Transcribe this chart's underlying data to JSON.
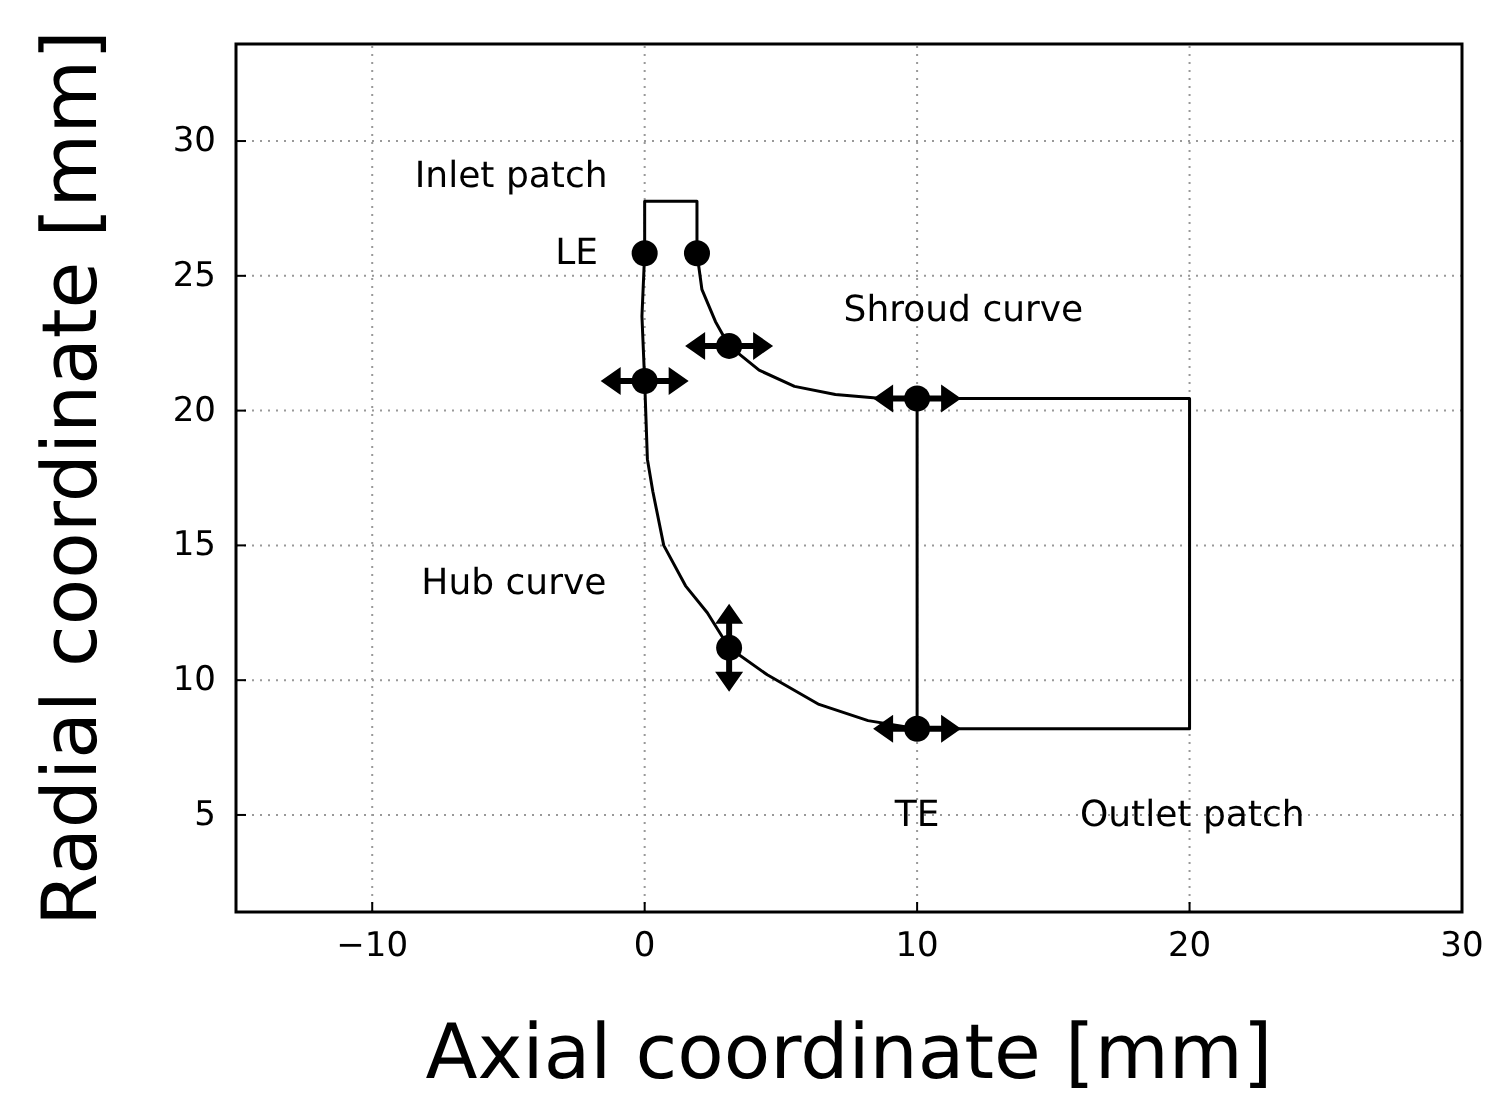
{
  "chart_data": {
    "type": "line",
    "xlabel": "Axial coordinate [mm]",
    "ylabel": "Radial coordinate [mm]",
    "xlim": [
      -15,
      30
    ],
    "ylim": [
      1.4,
      33.6
    ],
    "xticks": [
      {
        "value": -10,
        "label": "−10"
      },
      0,
      10,
      20,
      30
    ],
    "yticks": [
      5,
      10,
      15,
      20,
      25,
      30
    ],
    "grid": true,
    "line_style": "solid",
    "series": [
      {
        "color": "#000000",
        "x": [
          0,
          -0.1,
          0,
          0.1,
          0.3,
          0.7,
          1.5,
          2.3,
          3.1,
          4.5,
          6.4,
          8.2,
          10
        ],
        "values": [
          25.84,
          23.5,
          21.1,
          18.2,
          17,
          15,
          13.5,
          12.5,
          11.2,
          10.2,
          9.1,
          8.5,
          8.2
        ]
      },
      {
        "color": "#000000",
        "x": [
          1.92,
          2.1,
          2.6,
          3.1,
          4.2,
          5.5,
          7,
          8.5,
          10
        ],
        "values": [
          25.84,
          24.5,
          23.3,
          22.4,
          21.5,
          20.9,
          20.6,
          20.47,
          20.45
        ]
      },
      {
        "color": "#000000",
        "x": [
          0,
          0,
          1.92,
          1.92
        ],
        "values": [
          25.84,
          27.77,
          27.77,
          25.84
        ]
      },
      {
        "color": "#000000",
        "x": [
          10,
          20,
          20,
          10
        ],
        "values": [
          20.45,
          20.45,
          8.2,
          8.2
        ]
      },
      {
        "color": "#000000",
        "x": [
          10,
          10
        ],
        "values": [
          8.2,
          20.45
        ]
      },
      {
        "type": "scatter",
        "marker": "circle",
        "color": "#000000",
        "x": [
          0,
          1.92
        ],
        "values": [
          25.84,
          25.84
        ]
      },
      {
        "type": "scatter",
        "marker": "circle",
        "color": "#000000",
        "x": [
          0,
          3.1,
          10,
          10
        ],
        "values": [
          21.1,
          22.4,
          20.45,
          8.2
        ]
      },
      {
        "type": "scatter",
        "marker": "circle",
        "color": "#000000",
        "x": [
          3.1
        ],
        "values": [
          11.2
        ]
      }
    ],
    "annotations": [
      "Inlet patch",
      "LE",
      "Shroud curve",
      "Hub curve",
      "TE",
      "Outlet patch"
    ]
  }
}
